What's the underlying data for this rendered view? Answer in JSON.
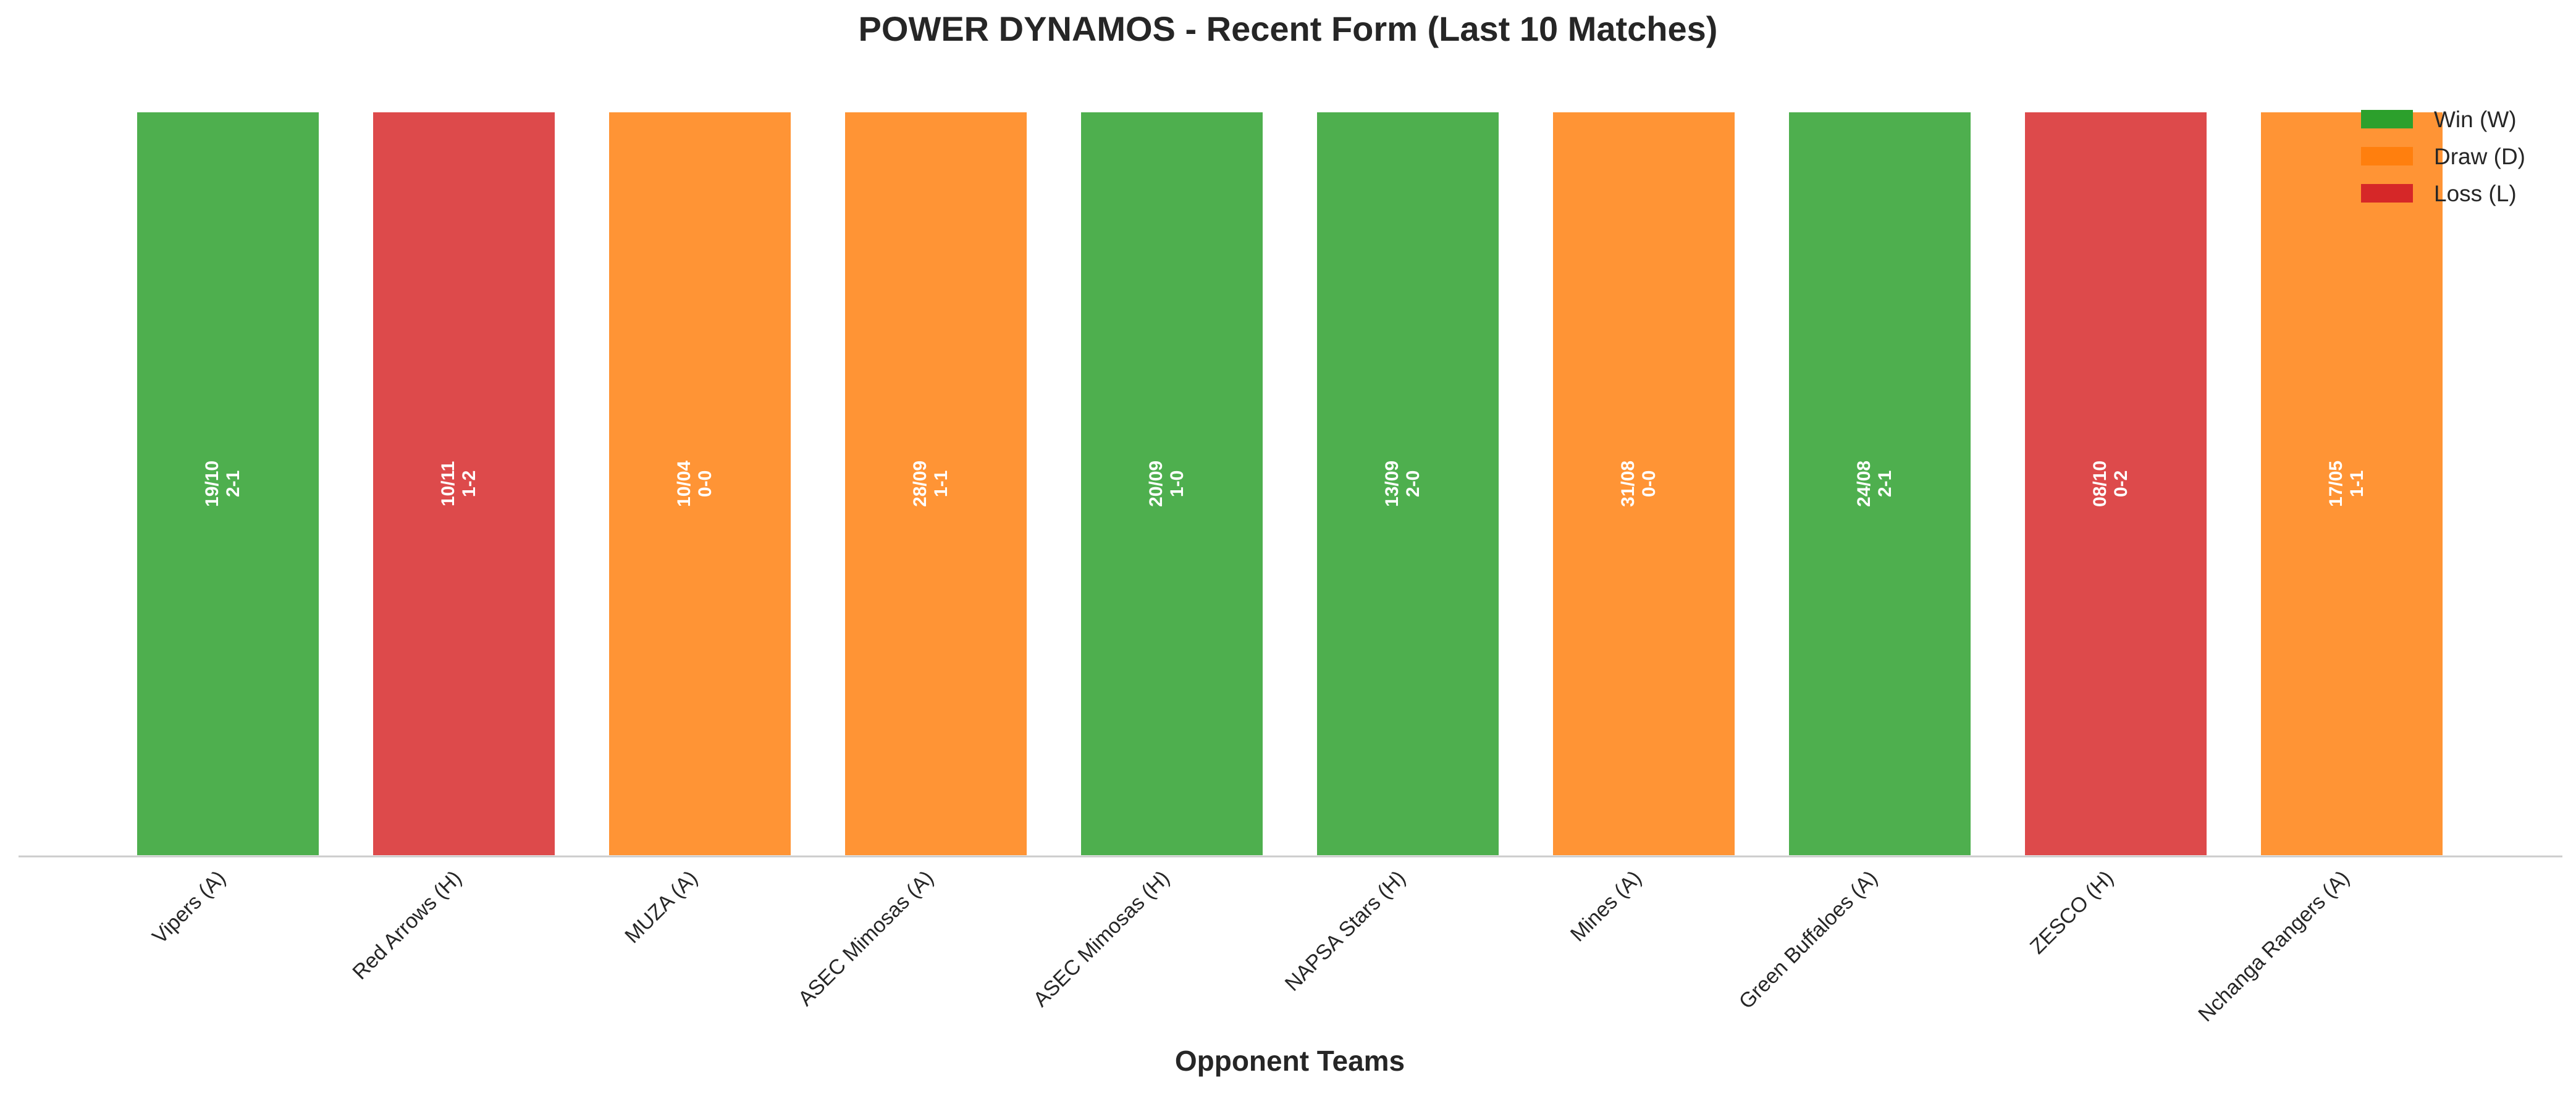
{
  "chart_data": {
    "type": "bar",
    "title": "POWER DYNAMOS - Recent Form (Last 10 Matches)",
    "xlabel": "Opponent Teams",
    "ylabel": "",
    "categories": [
      "Vipers (A)",
      "Red Arrows (H)",
      "MUZA (A)",
      "ASEC Mimosas (A)",
      "ASEC Mimosas (H)",
      "NAPSA Stars (H)",
      "Mines (A)",
      "Green Buffaloes (A)",
      "ZESCO (H)",
      "Nchanga Rangers (A)"
    ],
    "values": [
      1,
      1,
      1,
      1,
      1,
      1,
      1,
      1,
      1,
      1
    ],
    "ylim": [
      0,
      1.12
    ],
    "results": [
      "W",
      "L",
      "D",
      "D",
      "W",
      "W",
      "D",
      "W",
      "L",
      "D"
    ],
    "dates": [
      "19/10",
      "10/11",
      "10/04",
      "28/09",
      "20/09",
      "13/09",
      "31/08",
      "24/08",
      "08/10",
      "17/05"
    ],
    "scores": [
      "2-1",
      "1-2",
      "0-0",
      "1-1",
      "1-0",
      "2-0",
      "0-0",
      "2-1",
      "0-2",
      "1-1"
    ],
    "colors": {
      "W": "#2ca02c",
      "D": "#ff7f0e",
      "L": "#d62728"
    },
    "legend": {
      "placement": "top-right",
      "entries": [
        {
          "key": "W",
          "label": "Win (W)"
        },
        {
          "key": "D",
          "label": "Draw (D)"
        },
        {
          "key": "L",
          "label": "Loss (L)"
        }
      ]
    },
    "grid": false
  }
}
